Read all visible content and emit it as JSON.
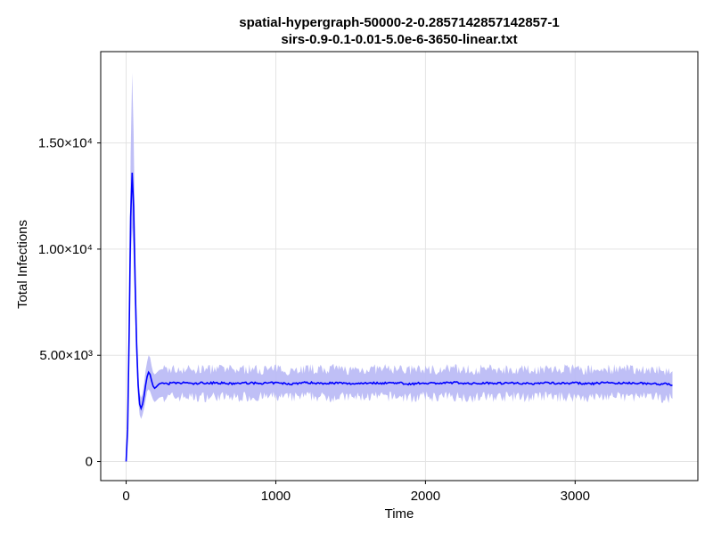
{
  "chart_data": {
    "type": "line",
    "title": [
      "spatial-hypergraph-50000-2-0.2857142857142857-1",
      "sirs-0.9-0.1-0.01-5.0e-6-3650-linear.txt"
    ],
    "xlabel": "Time",
    "ylabel": "Total Infections",
    "xlim": [
      -170,
      3820
    ],
    "ylim": [
      -900,
      19300
    ],
    "x_ticks": [
      {
        "value": 0,
        "label": "0"
      },
      {
        "value": 1000,
        "label": "1000"
      },
      {
        "value": 2000,
        "label": "2000"
      },
      {
        "value": 3000,
        "label": "3000"
      }
    ],
    "y_ticks": [
      {
        "value": 0,
        "label": "0"
      },
      {
        "value": 5000,
        "label": "5.00×10³"
      },
      {
        "value": 10000,
        "label": "1.00×10⁴"
      },
      {
        "value": 15000,
        "label": "1.50×10⁴"
      }
    ],
    "grid": true,
    "line_color": "#0000ff",
    "band_color": "#b8b8f5",
    "series": [
      {
        "x": [
          0,
          10,
          20,
          30,
          40,
          50,
          60,
          70,
          80,
          90,
          100,
          110,
          120,
          130,
          140,
          150,
          160,
          170,
          180,
          190,
          200,
          220,
          240,
          260,
          280,
          300,
          350,
          400,
          450,
          500,
          550,
          600,
          700,
          800,
          900,
          1000,
          1100,
          1200,
          1300,
          1400,
          1500,
          1600,
          1700,
          1800,
          1900,
          2000,
          2100,
          2200,
          2300,
          2400,
          2500,
          2600,
          2700,
          2800,
          2900,
          3000,
          3100,
          3200,
          3300,
          3400,
          3500,
          3600,
          3650
        ],
        "y": [
          0,
          1500,
          6000,
          11500,
          13600,
          12000,
          8500,
          5500,
          3600,
          2700,
          2500,
          2700,
          3100,
          3600,
          4000,
          4200,
          4100,
          3800,
          3550,
          3450,
          3500,
          3650,
          3700,
          3680,
          3650,
          3700,
          3680,
          3720,
          3650,
          3700,
          3690,
          3710,
          3660,
          3700,
          3680,
          3700,
          3650,
          3720,
          3680,
          3700,
          3660,
          3700,
          3690,
          3710,
          3650,
          3700,
          3680,
          3720,
          3660,
          3700,
          3690,
          3700,
          3660,
          3710,
          3680,
          3700,
          3650,
          3720,
          3680,
          3700,
          3660,
          3650,
          3600
        ],
        "lower": [
          0,
          1200,
          4800,
          9300,
          11000,
          9700,
          6900,
          4500,
          2900,
          2200,
          2000,
          2200,
          2500,
          2900,
          3300,
          3400,
          3300,
          3100,
          2900,
          2800,
          2850,
          3000,
          3050,
          3030,
          3000,
          3050,
          3030,
          3070,
          3000,
          3050,
          3040,
          3060,
          3010,
          3050,
          3030,
          3050,
          3000,
          3070,
          3030,
          3050,
          3010,
          3050,
          3040,
          3060,
          3000,
          3050,
          3030,
          3070,
          3010,
          3050,
          3040,
          3050,
          3010,
          3060,
          3030,
          3050,
          3000,
          3070,
          3030,
          3050,
          3010,
          3000,
          2950
        ],
        "upper": [
          0,
          1800,
          7500,
          14500,
          18300,
          15500,
          10500,
          6600,
          4300,
          3200,
          3000,
          3200,
          3700,
          4300,
          4700,
          5000,
          4900,
          4500,
          4200,
          4100,
          4150,
          4300,
          4350,
          4330,
          4300,
          4350,
          4330,
          4370,
          4300,
          4350,
          4340,
          4360,
          4310,
          4350,
          4330,
          4350,
          4300,
          4370,
          4330,
          4350,
          4310,
          4350,
          4340,
          4360,
          4300,
          4350,
          4330,
          4370,
          4310,
          4350,
          4340,
          4350,
          4310,
          4360,
          4330,
          4350,
          4300,
          4370,
          4330,
          4350,
          4310,
          4300,
          4250
        ]
      }
    ]
  }
}
